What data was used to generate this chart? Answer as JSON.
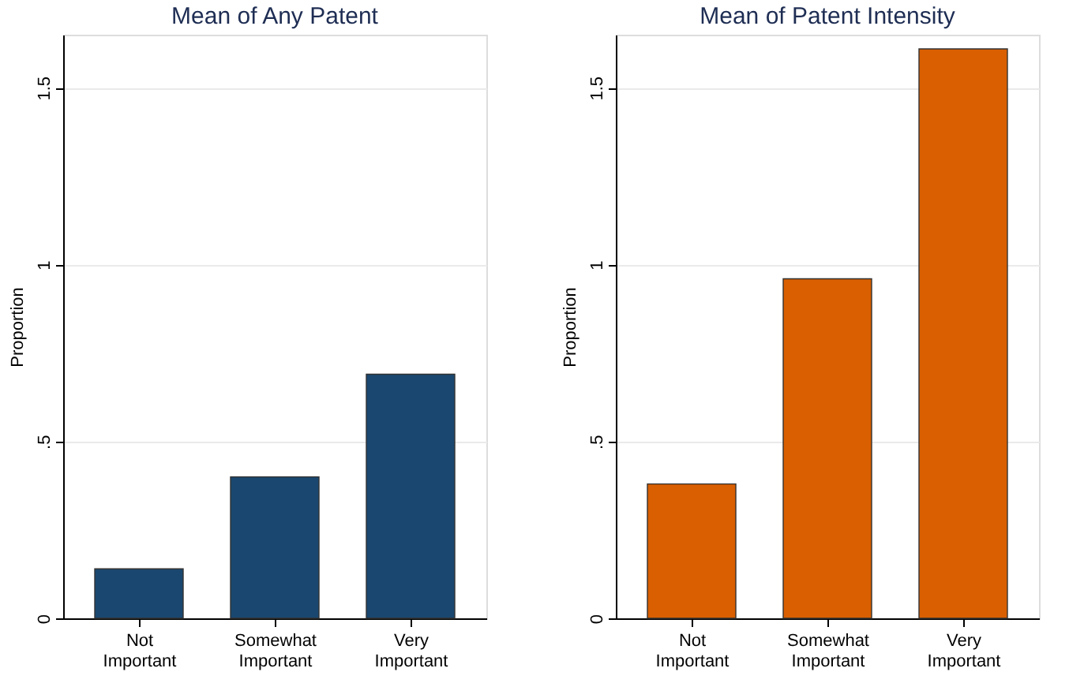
{
  "chart_data": [
    {
      "type": "bar",
      "title": "Mean of Any Patent",
      "ylabel": "Proportion",
      "categories": [
        "Not Important",
        "Somewhat Important",
        "Very Important"
      ],
      "values": [
        0.14,
        0.4,
        0.69
      ],
      "color": "#1a476f",
      "ylim": [
        0,
        1.65
      ],
      "yticks": [
        0,
        {
          "value": 0.5,
          "label": ".5"
        },
        1,
        1.5
      ],
      "grid": "y"
    },
    {
      "type": "bar",
      "title": "Mean of Patent Intensity",
      "ylabel": "Proportion",
      "categories": [
        "Not Important",
        "Somewhat Important",
        "Very Important"
      ],
      "values": [
        0.38,
        0.96,
        1.61
      ],
      "color": "#d95f00",
      "ylim": [
        0,
        1.65
      ],
      "yticks": [
        0,
        {
          "value": 0.5,
          "label": ".5"
        },
        1,
        1.5
      ],
      "grid": "y"
    }
  ]
}
